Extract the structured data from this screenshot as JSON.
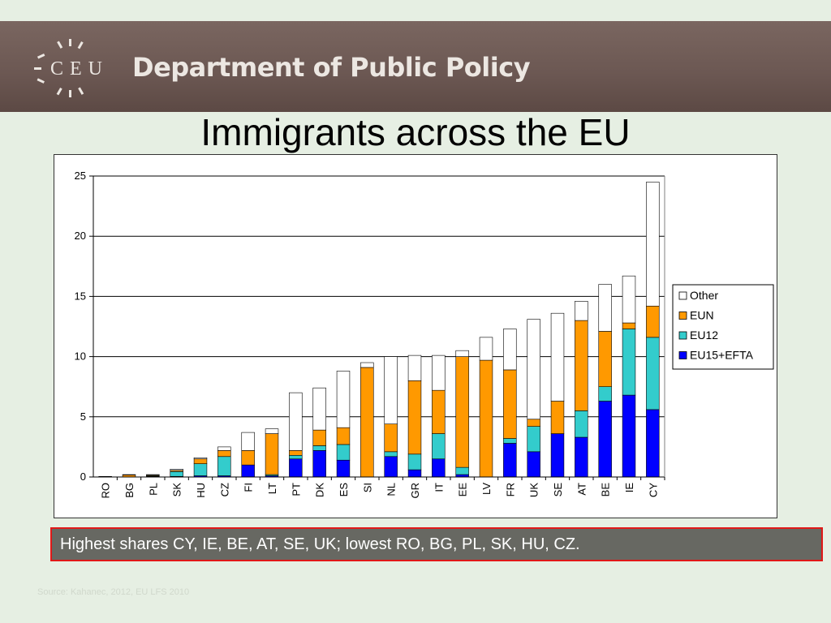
{
  "header": {
    "logo_text": "CEU",
    "department_title": "Department of Public Policy"
  },
  "slide": {
    "title": "Immigrants across the EU",
    "callout": "Highest shares CY, IE, BE, AT, SE, UK; lowest RO, BG, PL, SK, HU, CZ.",
    "source": "Source: Kahanec, 2012, EU LFS 2010"
  },
  "colors": {
    "EU15+EFTA": "#0000ff",
    "EU12": "#33cccc",
    "EUN": "#ff9900",
    "Other": "#ffffff"
  },
  "chart_data": {
    "type": "bar",
    "stacked": true,
    "categories": [
      "RO",
      "BG",
      "PL",
      "SK",
      "HU",
      "CZ",
      "FI",
      "LT",
      "PT",
      "DK",
      "ES",
      "SI",
      "NL",
      "GR",
      "IT",
      "EE",
      "LV",
      "FR",
      "UK",
      "SE",
      "AT",
      "BE",
      "IE",
      "CY"
    ],
    "series": [
      {
        "name": "EU15+EFTA",
        "values": [
          0.0,
          0.0,
          0.05,
          0.05,
          0.1,
          0.1,
          1.0,
          0.1,
          1.5,
          2.2,
          1.4,
          0.0,
          1.7,
          0.6,
          1.5,
          0.2,
          0.0,
          2.8,
          2.1,
          3.6,
          3.3,
          6.3,
          6.8,
          5.6
        ]
      },
      {
        "name": "EU12",
        "values": [
          0.0,
          0.0,
          0.05,
          0.4,
          1.0,
          1.6,
          0.0,
          0.1,
          0.3,
          0.4,
          1.3,
          0.0,
          0.4,
          1.3,
          2.1,
          0.6,
          0.0,
          0.4,
          2.1,
          0.0,
          2.2,
          1.2,
          5.5,
          6.0
        ]
      },
      {
        "name": "EUN",
        "values": [
          0.03,
          0.17,
          0.05,
          0.1,
          0.4,
          0.5,
          1.2,
          3.4,
          0.4,
          1.3,
          1.4,
          9.1,
          2.3,
          6.1,
          3.6,
          9.2,
          9.7,
          5.7,
          0.6,
          2.7,
          7.5,
          4.6,
          0.5,
          2.6
        ]
      },
      {
        "name": "Other",
        "values": [
          0.02,
          0.03,
          0.05,
          0.1,
          0.1,
          0.3,
          1.5,
          0.4,
          4.8,
          3.5,
          4.7,
          0.4,
          5.6,
          2.1,
          2.9,
          0.5,
          1.9,
          3.4,
          8.3,
          7.3,
          1.6,
          3.9,
          3.9,
          10.3
        ]
      }
    ],
    "ylim": [
      0,
      25
    ],
    "yticks": [
      0,
      5,
      10,
      15,
      20,
      25
    ],
    "grid": true,
    "legend": "right",
    "title": "",
    "xlabel": "",
    "ylabel": ""
  }
}
